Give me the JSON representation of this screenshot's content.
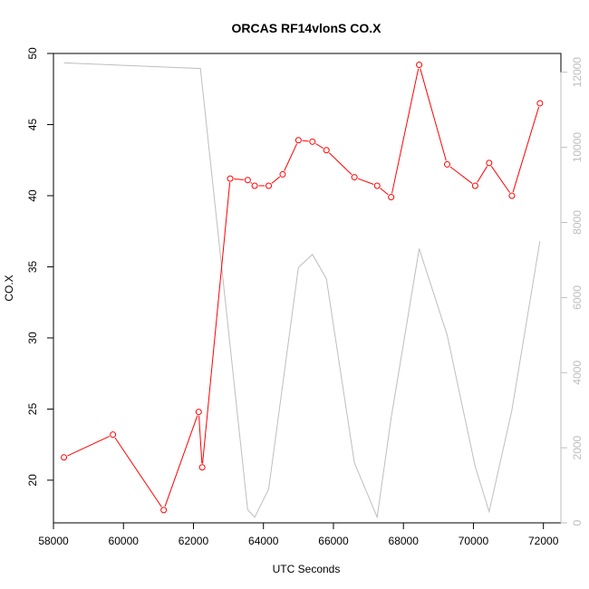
{
  "chart_data": {
    "type": "line",
    "title": "ORCAS RF14vlonS CO.X",
    "xlabel": "UTC Seconds",
    "ylabel": "CO.X",
    "xlim": [
      58000,
      72500
    ],
    "ylim": [
      17,
      50
    ],
    "y2lim": [
      0,
      12500
    ],
    "x_ticks": [
      58000,
      60000,
      62000,
      64000,
      66000,
      68000,
      70000,
      72000
    ],
    "y_ticks": [
      20,
      25,
      30,
      35,
      40,
      45,
      50
    ],
    "y2_ticks": [
      0,
      2000,
      4000,
      6000,
      8000,
      10000,
      12000
    ],
    "grid": false,
    "colors": {
      "primary": "#ff0000",
      "secondary": "#bebebe",
      "axis": "#000000",
      "axis_right": "#bdbdbd"
    },
    "series": [
      {
        "axis": "left",
        "style": "line+points",
        "x": [
          58300,
          59700,
          61150,
          62150,
          62250,
          63050,
          63550,
          63750,
          64150,
          64550,
          65000,
          65400,
          65800,
          66600,
          67250,
          67650,
          68450,
          69250,
          70050,
          70450,
          71100,
          71900
        ],
        "y": [
          21.6,
          23.2,
          17.9,
          24.8,
          20.9,
          41.2,
          41.1,
          40.7,
          40.7,
          41.5,
          43.9,
          43.8,
          43.2,
          41.3,
          40.7,
          39.9,
          49.2,
          42.2,
          40.7,
          42.3,
          40.0,
          46.5
        ]
      },
      {
        "axis": "right",
        "style": "line",
        "x": [
          58300,
          62200,
          63550,
          63750,
          64150,
          65000,
          65400,
          65800,
          66600,
          67250,
          67650,
          68450,
          69250,
          70050,
          70450,
          71100,
          71900
        ],
        "y": [
          12250,
          12100,
          350,
          150,
          900,
          6800,
          7150,
          6500,
          1600,
          150,
          2800,
          7300,
          5000,
          1500,
          300,
          3000,
          7500
        ]
      }
    ]
  }
}
